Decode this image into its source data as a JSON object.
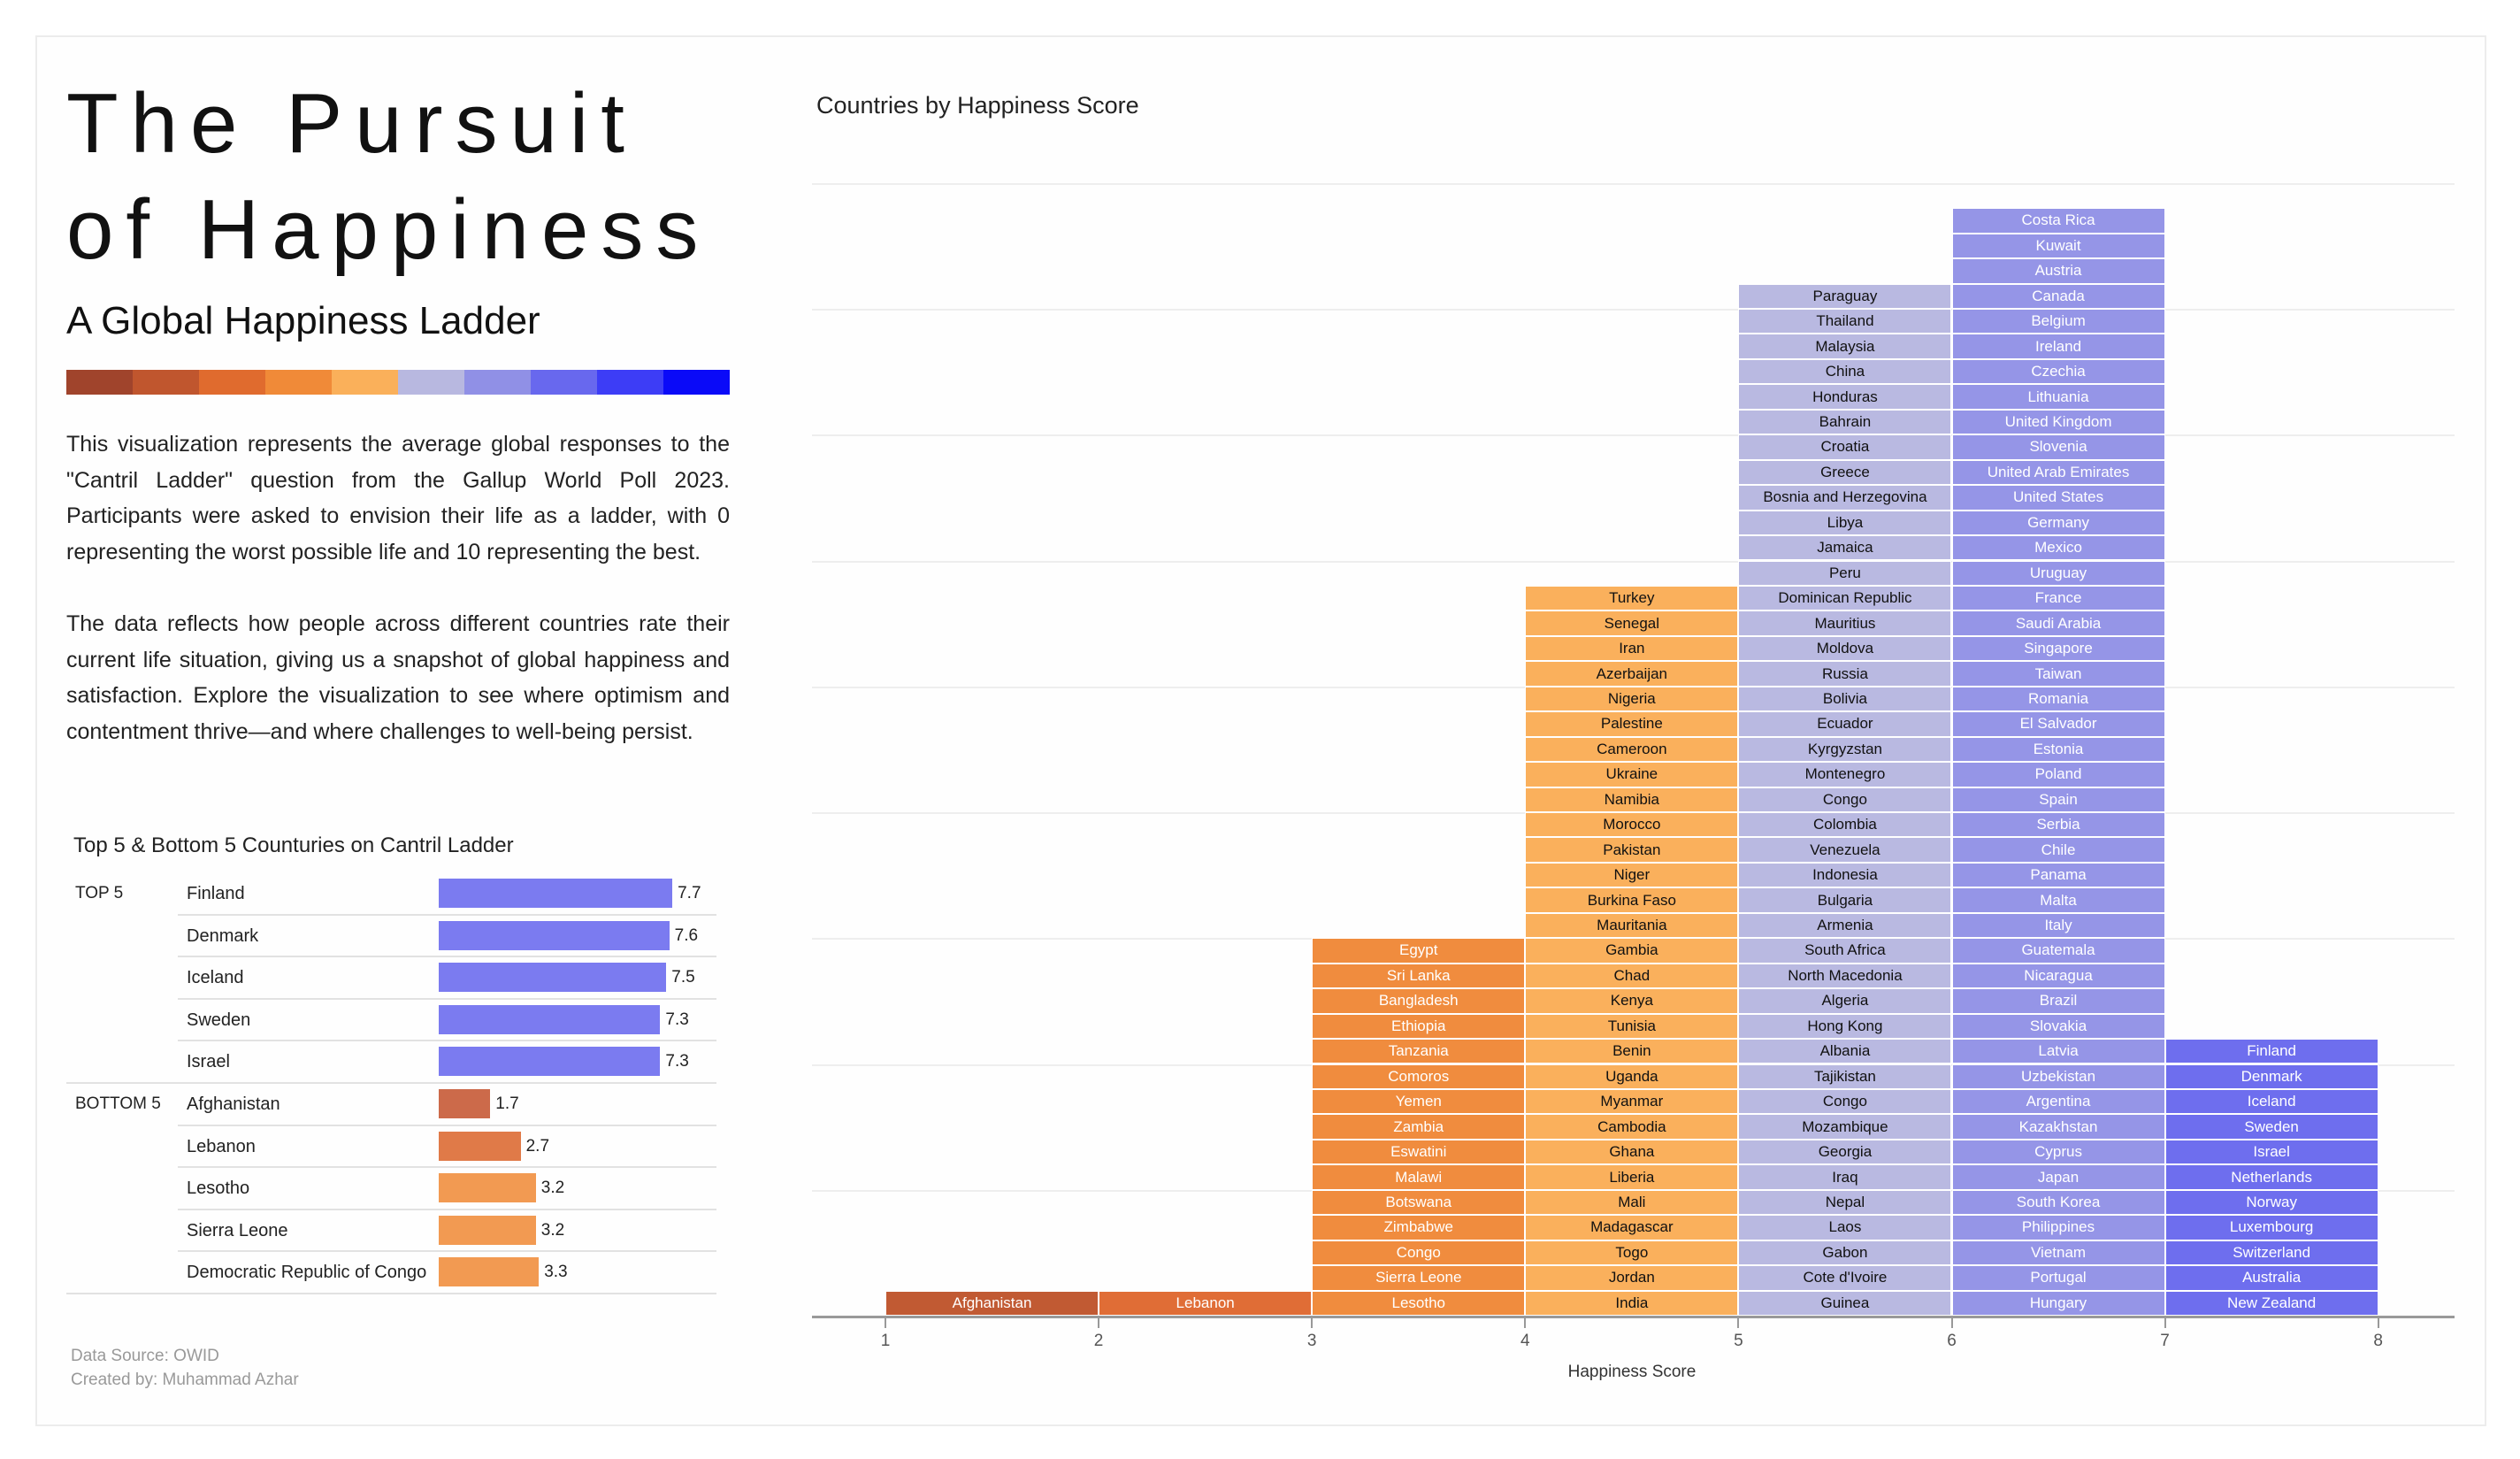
{
  "header": {
    "title_line1": "The Pursuit",
    "title_line2": "of Happiness",
    "subtitle": "A Global Happiness Ladder",
    "gradient_colors": [
      "#a0442c",
      "#c0562e",
      "#e06b2e",
      "#f08a38",
      "#fab05a",
      "#b8b8e0",
      "#9090e6",
      "#6868ee",
      "#3d3df6",
      "#0a0af8"
    ]
  },
  "description": {
    "p1": "This visualization represents the average global responses to the \"Cantril Ladder\" question from the Gallup World Poll 2023. Participants were asked to envision their life as a ladder, with 0 representing the worst possible life and 10 representing the best.",
    "p2": "The data reflects how people across different countries rate their current life situation, giving us a snapshot of global happiness and satisfaction. Explore the visualization to see where optimism and contentment thrive—and where challenges to well-being persist."
  },
  "top_bottom": {
    "title": "Top 5 & Bottom 5 Counturies on Cantril Ladder",
    "groups": [
      {
        "label": "TOP 5",
        "rows": [
          {
            "country": "Finland",
            "value": "7.7",
            "color": "#7b7bf0"
          },
          {
            "country": "Denmark",
            "value": "7.6",
            "color": "#7b7bf0"
          },
          {
            "country": "Iceland",
            "value": "7.5",
            "color": "#7b7bf0"
          },
          {
            "country": "Sweden",
            "value": "7.3",
            "color": "#7b7bf0"
          },
          {
            "country": "Israel",
            "value": "7.3",
            "color": "#7b7bf0"
          }
        ]
      },
      {
        "label": "BOTTOM 5",
        "rows": [
          {
            "country": "Afghanistan",
            "value": "1.7",
            "color": "#cc6a4a"
          },
          {
            "country": "Lebanon",
            "value": "2.7",
            "color": "#e07a48"
          },
          {
            "country": "Lesotho",
            "value": "3.2",
            "color": "#f29a52"
          },
          {
            "country": "Sierra Leone",
            "value": "3.2",
            "color": "#f29a52"
          },
          {
            "country": "Democratic Republic of Congo",
            "value": "3.3",
            "color": "#f29a52"
          }
        ]
      }
    ]
  },
  "footer": {
    "source": "Data Source: OWID",
    "credit": "Created by:  Muhammad Azhar"
  },
  "chart_data": {
    "type": "bar",
    "title": "Countries by Happiness Score",
    "xlabel": "Happiness Score",
    "xlim": [
      1,
      8
    ],
    "xticks": [
      "1",
      "2",
      "3",
      "4",
      "5",
      "6",
      "7",
      "8"
    ],
    "grid": true,
    "bins": [
      {
        "range": [
          1,
          2
        ],
        "color": "#c15a33",
        "text_color": "#ffffff",
        "countries_top_to_bottom": [
          "Afghanistan"
        ]
      },
      {
        "range": [
          2,
          3
        ],
        "color": "#e06d36",
        "text_color": "#ffffff",
        "countries_top_to_bottom": [
          "Lebanon"
        ]
      },
      {
        "range": [
          3,
          4
        ],
        "color": "#f08c3e",
        "text_color": "#ffffff",
        "countries_top_to_bottom": [
          "Egypt",
          "Sri Lanka",
          "Bangladesh",
          "Ethiopia",
          "Tanzania",
          "Comoros",
          "Yemen",
          "Zambia",
          "Eswatini",
          "Malawi",
          "Botswana",
          "Zimbabwe",
          "Congo",
          "Sierra Leone",
          "Lesotho"
        ]
      },
      {
        "range": [
          4,
          5
        ],
        "color": "#fab05c",
        "text_color": "#111111",
        "countries_top_to_bottom": [
          "Turkey",
          "Senegal",
          "Iran",
          "Azerbaijan",
          "Nigeria",
          "Palestine",
          "Cameroon",
          "Ukraine",
          "Namibia",
          "Morocco",
          "Pakistan",
          "Niger",
          "Burkina Faso",
          "Mauritania",
          "Gambia",
          "Chad",
          "Kenya",
          "Tunisia",
          "Benin",
          "Uganda",
          "Myanmar",
          "Cambodia",
          "Ghana",
          "Liberia",
          "Mali",
          "Madagascar",
          "Togo",
          "Jordan",
          "India"
        ]
      },
      {
        "range": [
          5,
          6
        ],
        "color": "#b9b9e1",
        "text_color": "#111111",
        "countries_top_to_bottom": [
          "Paraguay",
          "Thailand",
          "Malaysia",
          "China",
          "Honduras",
          "Bahrain",
          "Croatia",
          "Greece",
          "Bosnia and Herzegovina",
          "Libya",
          "Jamaica",
          "Peru",
          "Dominican Republic",
          "Mauritius",
          "Moldova",
          "Russia",
          "Bolivia",
          "Ecuador",
          "Kyrgyzstan",
          "Montenegro",
          "Congo",
          "Colombia",
          "Venezuela",
          "Indonesia",
          "Bulgaria",
          "Armenia",
          "South Africa",
          "North Macedonia",
          "Algeria",
          "Hong Kong",
          "Albania",
          "Tajikistan",
          "Congo",
          "Mozambique",
          "Georgia",
          "Iraq",
          "Nepal",
          "Laos",
          "Gabon",
          "Cote d'Ivoire",
          "Guinea"
        ]
      },
      {
        "range": [
          6,
          7
        ],
        "color": "#9595e7",
        "text_color": "#ffffff",
        "countries_top_to_bottom": [
          "Costa Rica",
          "Kuwait",
          "Austria",
          "Canada",
          "Belgium",
          "Ireland",
          "Czechia",
          "Lithuania",
          "United Kingdom",
          "Slovenia",
          "United Arab Emirates",
          "United States",
          "Germany",
          "Mexico",
          "Uruguay",
          "France",
          "Saudi Arabia",
          "Singapore",
          "Taiwan",
          "Romania",
          "El Salvador",
          "Estonia",
          "Poland",
          "Spain",
          "Serbia",
          "Chile",
          "Panama",
          "Malta",
          "Italy",
          "Guatemala",
          "Nicaragua",
          "Brazil",
          "Slovakia",
          "Latvia",
          "Uzbekistan",
          "Argentina",
          "Kazakhstan",
          "Cyprus",
          "Japan",
          "South Korea",
          "Philippines",
          "Vietnam",
          "Portugal",
          "Hungary"
        ]
      },
      {
        "range": [
          7,
          8
        ],
        "color": "#6e6eee",
        "text_color": "#ffffff",
        "countries_top_to_bottom": [
          "Finland",
          "Denmark",
          "Iceland",
          "Sweden",
          "Israel",
          "Netherlands",
          "Norway",
          "Luxembourg",
          "Switzerland",
          "Australia",
          "New Zealand"
        ]
      }
    ]
  }
}
